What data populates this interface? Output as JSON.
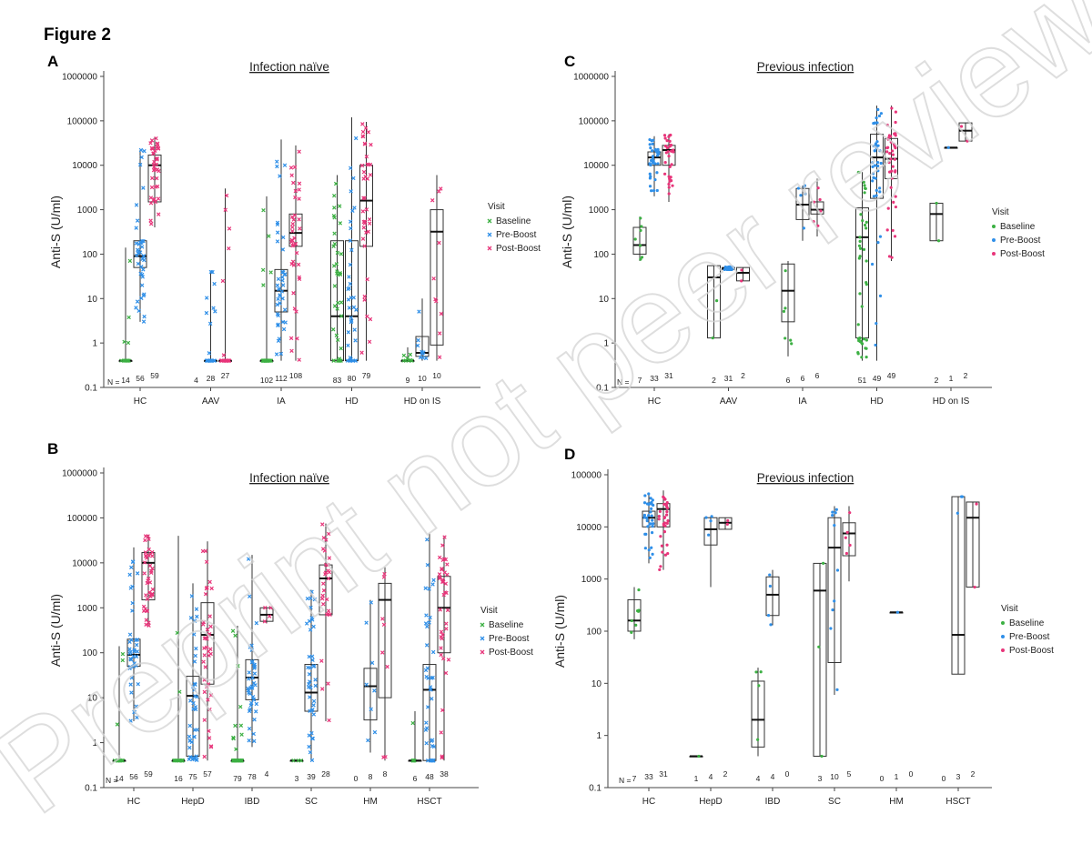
{
  "figure_title": "Figure 2",
  "watermark": "Preprint not peer reviewed",
  "colors": {
    "Baseline": "#3cb043",
    "Pre-Boost": "#2f8fe8",
    "Post-Boost": "#e8357a"
  },
  "chart_data": [
    {
      "panel": "A",
      "type": "box",
      "title": "Infection naïve",
      "ylabel": "Anti-S (U/ml)",
      "yscale": "log",
      "ylim": [
        0.1,
        1000000
      ],
      "yticks": [
        "0.1",
        "1",
        "10",
        "100",
        "1000",
        "10000",
        "100000",
        "1000000"
      ],
      "categories": [
        "HC",
        "AAV",
        "IA",
        "HD",
        "HD on IS"
      ],
      "legend": {
        "title": "Visit",
        "entries": [
          "Baseline",
          "Pre-Boost",
          "Post-Boost"
        ]
      },
      "n_label": "N =",
      "marker": "x",
      "series": [
        {
          "name": "Baseline",
          "n": [
            14,
            4,
            102,
            83,
            9
          ],
          "boxes": [
            [
              0.4,
              0.4,
              0.4,
              0.4,
              140
            ],
            null,
            [
              0.4,
              0.4,
              0.4,
              0.4,
              2000
            ],
            [
              0.4,
              0.4,
              4,
              200,
              6000
            ],
            [
              0.4,
              0.4,
              0.4,
              0.4,
              0.8
            ]
          ]
        },
        {
          "name": "Pre-Boost",
          "n": [
            56,
            28,
            112,
            80,
            10
          ],
          "boxes": [
            [
              3,
              50,
              90,
              200,
              22000
            ],
            [
              0.4,
              0.4,
              0.4,
              0.4,
              40
            ],
            [
              0.4,
              5,
              15,
              45,
              38000
            ],
            [
              0.4,
              0.4,
              4,
              200,
              120000
            ],
            [
              0.4,
              0.5,
              0.6,
              1.4,
              10
            ]
          ]
        },
        {
          "name": "Post-Boost",
          "n": [
            59,
            27,
            108,
            79,
            10
          ],
          "boxes": [
            [
              400,
              1500,
              10000,
              17000,
              42000
            ],
            [
              0.4,
              0.4,
              0.4,
              0.4,
              3000
            ],
            [
              0.4,
              150,
              300,
              800,
              28000
            ],
            [
              0.4,
              150,
              1600,
              10000,
              95000
            ],
            [
              0.4,
              0.9,
              320,
              1000,
              6000
            ]
          ]
        }
      ]
    },
    {
      "panel": "C",
      "type": "box",
      "title": "Previous infection",
      "ylabel": "Anti-S (U/ml)",
      "yscale": "log",
      "ylim": [
        0.1,
        1000000
      ],
      "yticks": [
        "0.1",
        "1",
        "10",
        "100",
        "1000",
        "10000",
        "100000",
        "1000000"
      ],
      "categories": [
        "HC",
        "AAV",
        "IA",
        "HD",
        "HD on IS"
      ],
      "legend": {
        "title": "Visit",
        "entries": [
          "Baseline",
          "Pre-Boost",
          "Post-Boost"
        ]
      },
      "n_label": "N =",
      "marker": "dot",
      "series": [
        {
          "name": "Baseline",
          "n": [
            7,
            2,
            6,
            51,
            2
          ],
          "boxes": [
            [
              70,
              100,
              160,
              400,
              700
            ],
            [
              1.3,
              1.3,
              30,
              55,
              55
            ],
            [
              0.5,
              3,
              15,
              60,
              70
            ],
            [
              0.4,
              1.3,
              240,
              1100,
              7000
            ],
            [
              200,
              200,
              800,
              1400,
              1400
            ]
          ]
        },
        {
          "name": "Pre-Boost",
          "n": [
            33,
            31,
            6,
            49,
            1
          ],
          "boxes": [
            [
              2000,
              10000,
              15000,
              20000,
              45000
            ],
            [
              45,
              45,
              48,
              50,
              52
            ],
            [
              200,
              600,
              1300,
              3000,
              3500
            ],
            [
              0.4,
              1800,
              15000,
              50000,
              220000
            ],
            [
              25000,
              25000,
              25000,
              25000,
              25000
            ]
          ]
        },
        {
          "name": "Post-Boost",
          "n": [
            31,
            2,
            6,
            49,
            2
          ],
          "boxes": [
            [
              1500,
              10000,
              22000,
              28000,
              50000
            ],
            [
              25,
              25,
              38,
              50,
              50
            ],
            [
              250,
              800,
              1000,
              1500,
              5000
            ],
            [
              70,
              5000,
              14000,
              40000,
              220000
            ],
            [
              35000,
              35000,
              60000,
              90000,
              90000
            ]
          ]
        }
      ]
    },
    {
      "panel": "B",
      "type": "box",
      "title": "Infection naïve",
      "ylabel": "Anti-S (U/ml)",
      "yscale": "log",
      "ylim": [
        0.1,
        1000000
      ],
      "yticks": [
        "0.1",
        "1",
        "10",
        "100",
        "1000",
        "10000",
        "100000",
        "1000000"
      ],
      "categories": [
        "HC",
        "HepD",
        "IBD",
        "SC",
        "HM",
        "HSCT"
      ],
      "legend": {
        "title": "Visit",
        "entries": [
          "Baseline",
          "Pre-Boost",
          "Post-Boost"
        ]
      },
      "n_label": "N =",
      "marker": "x",
      "series": [
        {
          "name": "Baseline",
          "n": [
            14,
            16,
            79,
            3,
            0,
            6
          ],
          "boxes": [
            [
              0.4,
              0.4,
              0.4,
              0.4,
              140
            ],
            [
              0.4,
              0.4,
              0.4,
              0.4,
              40000
            ],
            [
              0.4,
              0.4,
              0.4,
              0.4,
              400
            ],
            [
              0.4,
              0.4,
              0.4,
              0.4,
              0.4
            ],
            null,
            [
              0.4,
              0.4,
              0.4,
              0.4,
              5
            ]
          ]
        },
        {
          "name": "Pre-Boost",
          "n": [
            56,
            75,
            78,
            39,
            8,
            48
          ],
          "boxes": [
            [
              3,
              50,
              90,
              200,
              22000
            ],
            [
              0.4,
              0.5,
              11,
              30,
              3500
            ],
            [
              0.8,
              9,
              28,
              70,
              15000
            ],
            [
              0.4,
              5,
              13,
              55,
              2500
            ],
            [
              0.6,
              3.2,
              18,
              45,
              1500
            ],
            [
              0.4,
              0.4,
              15,
              55,
              45000
            ]
          ]
        },
        {
          "name": "Post-Boost",
          "n": [
            59,
            57,
            4,
            28,
            8,
            38
          ],
          "boxes": [
            [
              400,
              1500,
              10000,
              17000,
              42000
            ],
            [
              0.4,
              20,
              250,
              1300,
              30000
            ],
            [
              450,
              500,
              700,
              1000,
              1000
            ],
            [
              3,
              700,
              4500,
              9000,
              75000
            ],
            [
              0.4,
              10,
              1500,
              3500,
              8000
            ],
            [
              0.4,
              100,
              1000,
              5000,
              40000
            ]
          ]
        }
      ]
    },
    {
      "panel": "D",
      "type": "box",
      "title": "Previous infection",
      "ylabel": "Anti-S (U/ml)",
      "yscale": "log",
      "ylim": [
        0.1,
        100000
      ],
      "yticks": [
        "0.1",
        "1",
        "10",
        "100",
        "1000",
        "10000",
        "100000"
      ],
      "categories": [
        "HC",
        "HepD",
        "IBD",
        "SC",
        "HM",
        "HSCT"
      ],
      "legend": {
        "title": "Visit",
        "entries": [
          "Baseline",
          "Pre-Boost",
          "Post-Boost"
        ]
      },
      "n_label": "N =",
      "marker": "dot",
      "series": [
        {
          "name": "Baseline",
          "n": [
            7,
            1,
            4,
            3,
            0,
            0
          ],
          "boxes": [
            [
              70,
              100,
              160,
              400,
              700
            ],
            [
              0.4,
              0.4,
              0.4,
              0.4,
              0.4
            ],
            [
              0.4,
              0.6,
              2,
              11,
              20
            ],
            [
              0.4,
              0.4,
              600,
              2000,
              2000
            ],
            null,
            null
          ]
        },
        {
          "name": "Pre-Boost",
          "n": [
            33,
            4,
            4,
            10,
            1,
            3
          ],
          "boxes": [
            [
              2000,
              10000,
              15000,
              20000,
              45000
            ],
            [
              700,
              4500,
              9000,
              15000,
              16000
            ],
            [
              130,
              200,
              500,
              1100,
              1500
            ],
            [
              6,
              25,
              4000,
              15000,
              25000
            ],
            [
              230,
              230,
              230,
              230,
              230
            ],
            [
              15,
              15,
              85,
              38000,
              38000
            ]
          ]
        },
        {
          "name": "Post-Boost",
          "n": [
            31,
            2,
            0,
            5,
            0,
            2
          ],
          "boxes": [
            [
              1500,
              10000,
              22000,
              28000,
              50000
            ],
            [
              9000,
              9000,
              12000,
              15000,
              15000
            ],
            null,
            [
              900,
              2800,
              7500,
              12000,
              25000
            ],
            null,
            [
              700,
              700,
              15000,
              30000,
              30000
            ]
          ]
        }
      ]
    }
  ]
}
